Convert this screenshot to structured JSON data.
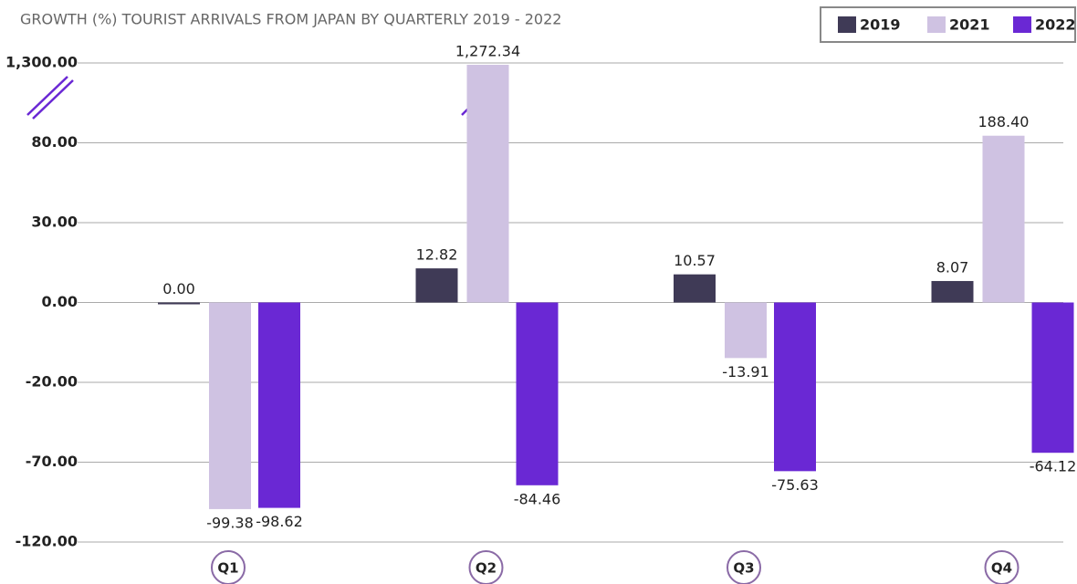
{
  "chart_data": {
    "type": "bar",
    "title": "GROWTH (%) TOURIST ARRIVALS FROM JAPAN BY QUARTERLY  2019 - 2022",
    "categories": [
      "Q1",
      "Q2",
      "Q3",
      "Q4"
    ],
    "series": [
      {
        "name": "2019",
        "color": "#3f3a56",
        "values": [
          0,
          12.82,
          10.57,
          8.07
        ],
        "value_labels": [
          "0.00",
          "12.82",
          "10.57",
          "8.07"
        ]
      },
      {
        "name": "2021",
        "color": "#cfc2e2",
        "values": [
          -99.38,
          1272.34,
          -13.91,
          188.4
        ],
        "value_labels": [
          "-99.38",
          "1,272.34",
          "-13.91",
          "188.40"
        ]
      },
      {
        "name": "2022",
        "color": "#6a28d4",
        "values": [
          -98.62,
          -84.46,
          -75.63,
          -64.12
        ],
        "value_labels": [
          "-98.62",
          "-84.46",
          "-75.63",
          "-64.12"
        ]
      }
    ],
    "ylim": [
      -120,
      1300
    ],
    "yticks": [
      {
        "value": 1300,
        "label": "1,300.00"
      },
      {
        "value": 80,
        "label": "80.00"
      },
      {
        "value": 30,
        "label": "30.00"
      },
      {
        "value": 0,
        "label": "0.00"
      },
      {
        "value": -20,
        "label": "-20.00"
      },
      {
        "value": -70,
        "label": "-70.00"
      },
      {
        "value": -120,
        "label": "-120.00"
      }
    ],
    "grid": true,
    "legend": "top-right"
  }
}
